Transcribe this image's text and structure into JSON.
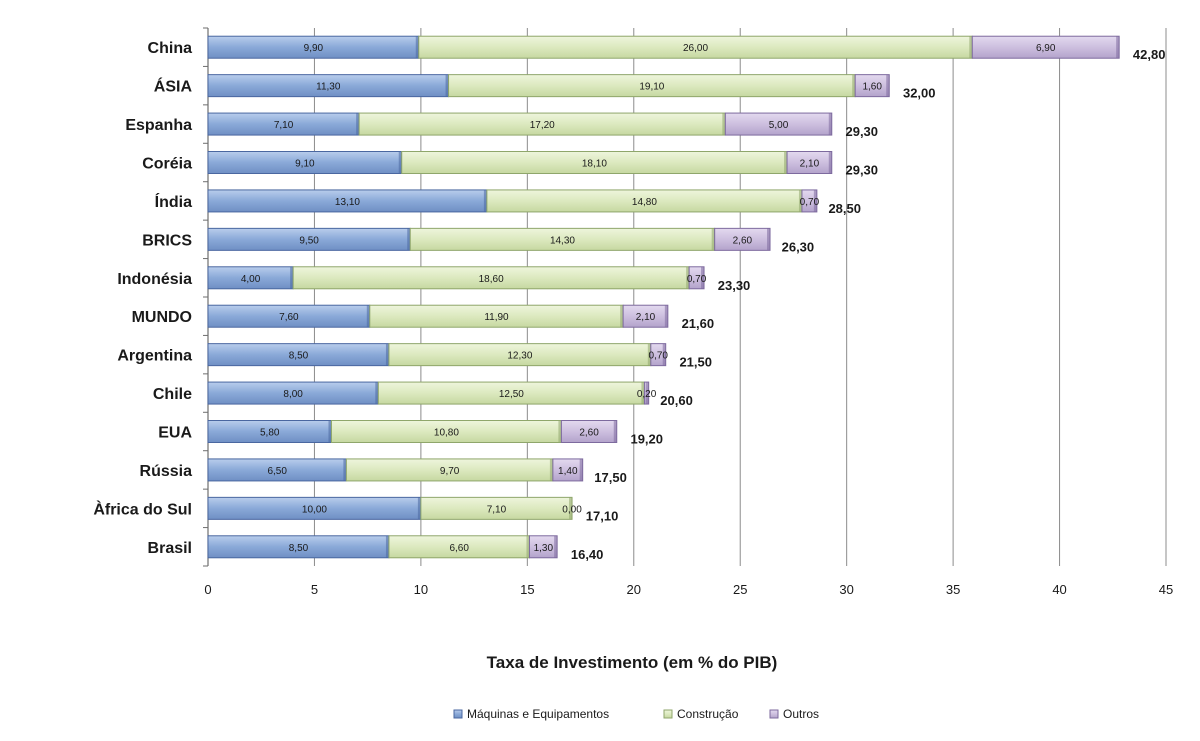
{
  "chart_data": {
    "type": "bar",
    "orientation": "horizontal",
    "stacked": true,
    "title": "",
    "xlabel": "Taxa de Investimento (em % do PIB)",
    "ylabel": "",
    "xlim": [
      0,
      45
    ],
    "x_ticks": [
      "0",
      "5",
      "10",
      "15",
      "20",
      "25",
      "30",
      "35",
      "40",
      "45"
    ],
    "grid": "vertical",
    "legend_position": "bottom",
    "categories": [
      "China",
      "ÁSIA",
      "Espanha",
      "Coréia",
      "Índia",
      "BRICS",
      "Indonésia",
      "MUNDO",
      "Argentina",
      "Chile",
      "EUA",
      "Rússia",
      "Àfrica do Sul",
      "Brasil"
    ],
    "series": [
      {
        "name": "Máquinas e Equipamentos",
        "color": "#8aa9d8",
        "values": [
          9.9,
          11.3,
          7.1,
          9.1,
          13.1,
          9.5,
          4.0,
          7.6,
          8.5,
          8.0,
          5.8,
          6.5,
          10.0,
          8.5
        ],
        "labels": [
          "9,90",
          "11,30",
          "7,10",
          "9,10",
          "13,10",
          "9,50",
          "4,00",
          "7,60",
          "8,50",
          "8,00",
          "5,80",
          "6,50",
          "10,00",
          "8,50"
        ]
      },
      {
        "name": "Construção",
        "color": "#dce9bf",
        "values": [
          26.0,
          19.1,
          17.2,
          18.1,
          14.8,
          14.3,
          18.6,
          11.9,
          12.3,
          12.5,
          10.8,
          9.7,
          7.1,
          6.6
        ],
        "labels": [
          "26,00",
          "19,10",
          "17,20",
          "18,10",
          "14,80",
          "14,30",
          "18,60",
          "11,90",
          "12,30",
          "12,50",
          "10,80",
          "9,70",
          "7,10",
          "6,60"
        ]
      },
      {
        "name": "Outros",
        "color": "#cdbfdf",
        "values": [
          6.9,
          1.6,
          5.0,
          2.1,
          0.7,
          2.6,
          0.7,
          2.1,
          0.7,
          0.2,
          2.6,
          1.4,
          0.0,
          1.3
        ],
        "labels": [
          "6,90",
          "1,60",
          "5,00",
          "2,10",
          "0,70",
          "2,60",
          "0,70",
          "2,10",
          "0,70",
          "0,20",
          "2,60",
          "1,40",
          "0,00",
          "1,30"
        ]
      }
    ],
    "totals": [
      42.8,
      32.0,
      29.3,
      29.3,
      28.5,
      26.3,
      23.3,
      21.6,
      21.5,
      20.6,
      19.2,
      17.5,
      17.1,
      16.4
    ],
    "total_labels": [
      "42,80",
      "32,00",
      "29,30",
      "29,30",
      "28,50",
      "26,30",
      "23,30",
      "21,60",
      "21,50",
      "20,60",
      "19,20",
      "17,50",
      "17,10",
      "16,40"
    ]
  }
}
